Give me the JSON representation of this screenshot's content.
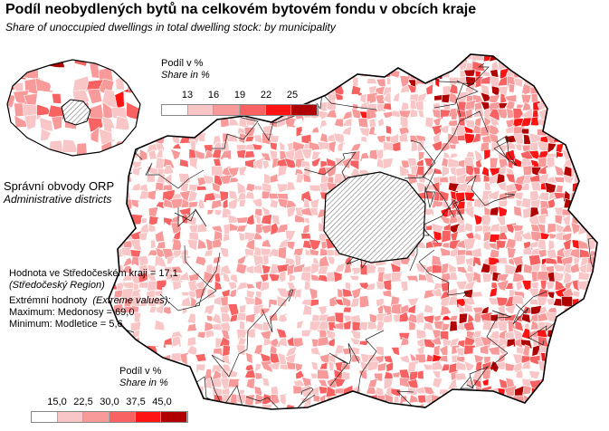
{
  "title": "Podíl neobydlených bytů na celkovém bytovém fondu v obcích kraje",
  "subtitle": "Share of unoccupied dwellings in total dwelling stock: by municipality",
  "inset": {
    "title": "Správní obvody ORP",
    "subtitle": "Administrative districts",
    "legend": {
      "label_cz": "Podíl v %",
      "label_en": "Share in %",
      "ticks": [
        "13",
        "16",
        "19",
        "22",
        "25"
      ],
      "colors": [
        "#ffffff",
        "#f8c6c6",
        "#f89a9a",
        "#f86262",
        "#ff1414",
        "#b00000"
      ]
    }
  },
  "main_legend": {
    "label_cz": "Podíl v %",
    "label_en": "Share in %",
    "ticks": [
      "15,0",
      "22,5",
      "30,0",
      "37,5",
      "45,0"
    ],
    "colors": [
      "#ffffff",
      "#f8c6c6",
      "#f89a9a",
      "#f86262",
      "#ff1414",
      "#b00000"
    ]
  },
  "info": {
    "region_value": "Hodnota ve Středočeském kraji = 17,1",
    "region_name": "(Středočeský Region)",
    "extreme_label": "Extrémní hodnoty",
    "extreme_label_en": "(Extreme values):",
    "maximum": "Maximum: Medonosy = 69,0",
    "minimum": "Minimum: Modletice = 5,6"
  },
  "hatch_area": "Praha (excluded)"
}
